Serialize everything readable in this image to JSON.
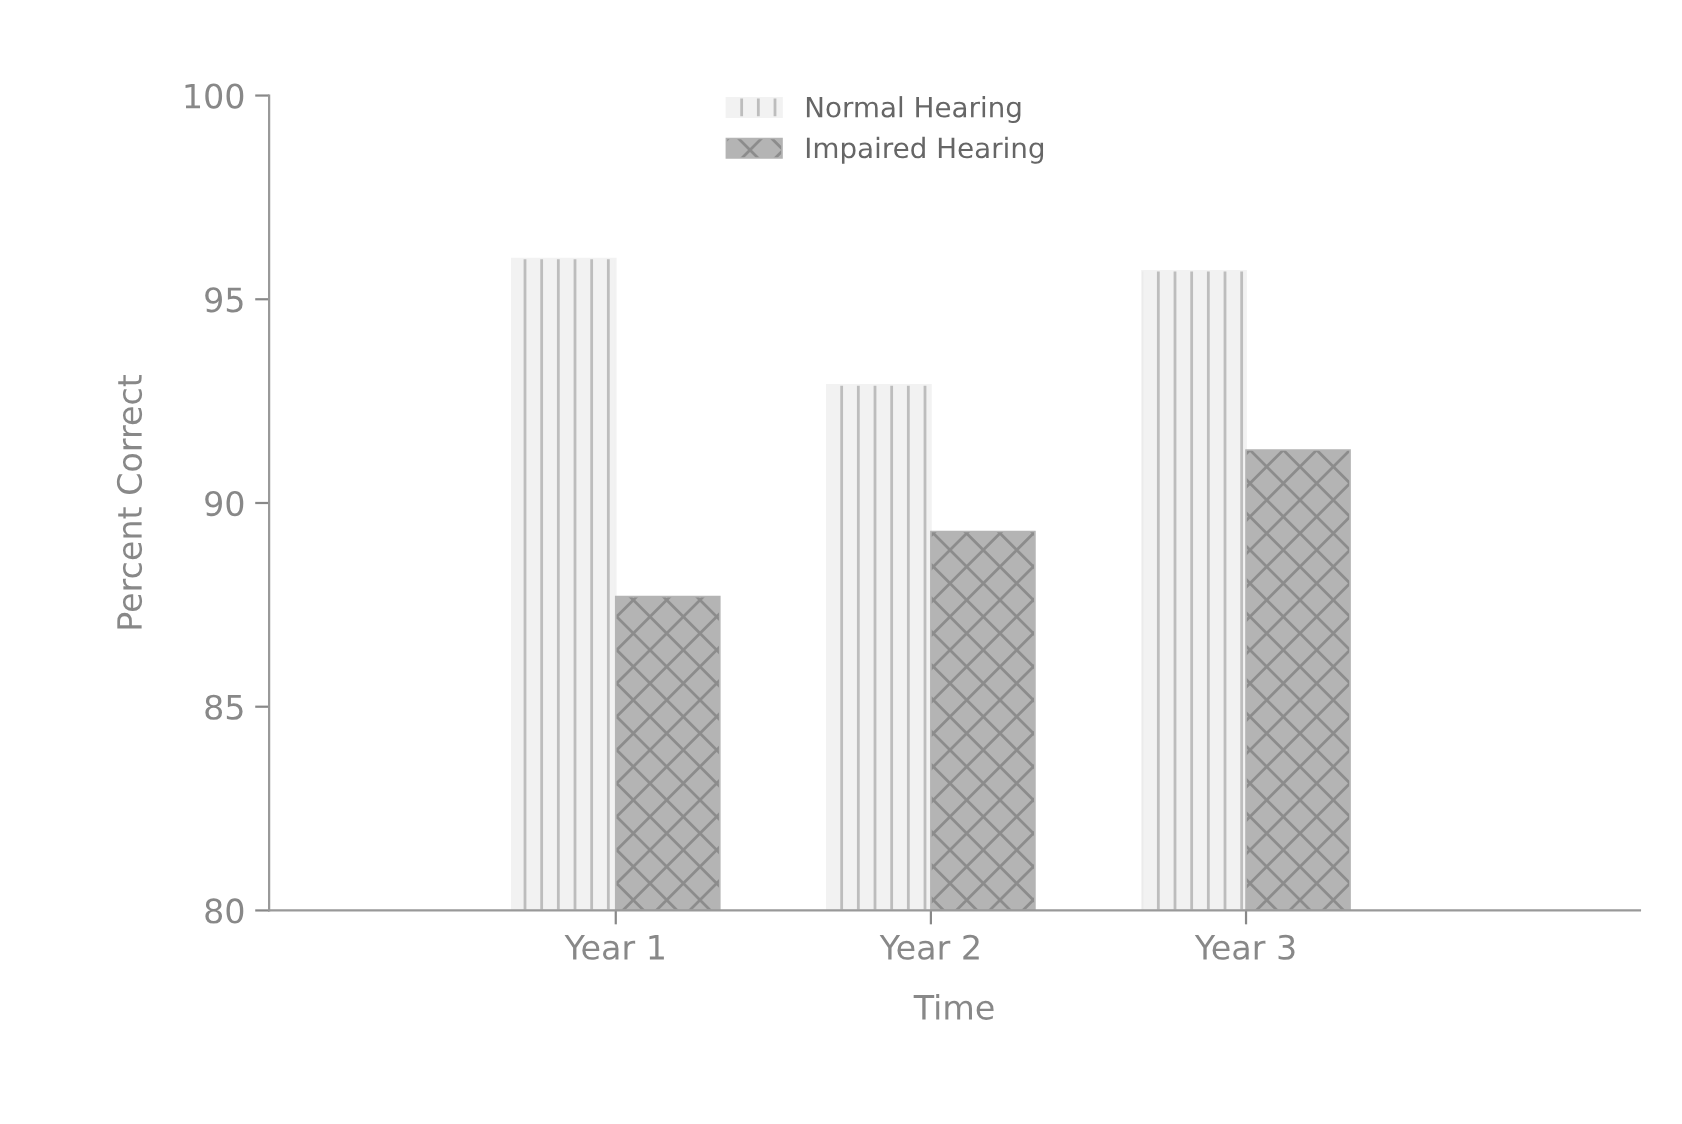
{
  "chart_data": {
    "type": "bar",
    "xlabel": "Time",
    "ylabel": "Percent Correct",
    "categories": [
      "Year 1",
      "Year 2",
      "Year 3"
    ],
    "series": [
      {
        "name": "Normal Hearing",
        "color": "#f2f2f2",
        "values": [
          96.0,
          92.9,
          95.7
        ]
      },
      {
        "name": "Impaired Hearing",
        "color": "#b4b4b4",
        "values": [
          87.7,
          89.3,
          91.3
        ]
      }
    ],
    "ylim": [
      80,
      100
    ],
    "yticks": [
      80,
      85,
      90,
      95,
      100
    ],
    "grid": false,
    "legend": "top"
  }
}
